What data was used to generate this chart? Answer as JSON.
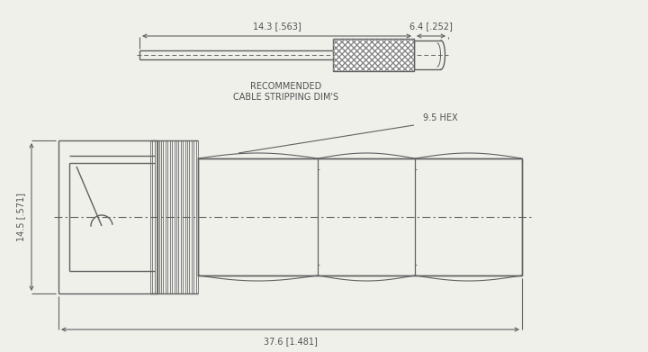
{
  "bg_color": "#f0f0eb",
  "line_color": "#606060",
  "dim_color": "#606060",
  "text_color": "#505050",
  "hatch_color": "#888888",
  "top_cable_label": "14.3 [.563]",
  "top_tip_label": "6.4 [.252]",
  "recommended_line1": "RECOMMENDED",
  "recommended_line2": "CABLE STRIPPING DIM'S",
  "main_height_label": "14.5 [.571]",
  "main_width_label": "37.6 [1.481]",
  "hex_label": "9.5 HEX"
}
